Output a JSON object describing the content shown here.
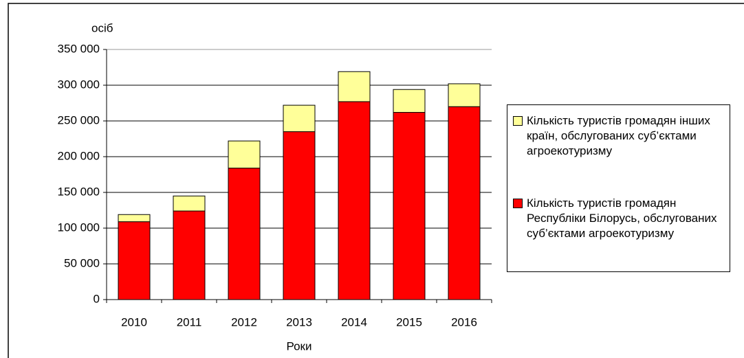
{
  "chart_data": {
    "type": "stacked_bar",
    "y_label": "осіб",
    "x_label": "Роки",
    "categories": [
      "2010",
      "2011",
      "2012",
      "2013",
      "2014",
      "2015",
      "2016"
    ],
    "series": [
      {
        "name": "Кількість туристів громадян Республіки Білорусь, обслугованих суб’єктами агроекотуризму",
        "color": "#ff0000",
        "values": [
          109000,
          124000,
          184000,
          235000,
          277000,
          262000,
          270000
        ]
      },
      {
        "name": "Кількість туристів громадян інших країн, обслугованих суб’єктами агроекотуризму",
        "color": "#ffff99",
        "values": [
          10000,
          21000,
          38000,
          37000,
          42000,
          32000,
          32000
        ]
      }
    ],
    "ylim": [
      0,
      350000
    ],
    "yticks": [
      0,
      {
        "value": 50000,
        "label": "50 000"
      },
      {
        "value": 100000,
        "label": "100 000"
      },
      {
        "value": 150000,
        "label": "150 000"
      },
      {
        "value": 200000,
        "label": "200 000"
      },
      {
        "value": 250000,
        "label": "250 000"
      },
      {
        "value": 300000,
        "label": "300 000"
      },
      {
        "value": 350000,
        "label": "350 000"
      }
    ],
    "grid": true
  }
}
